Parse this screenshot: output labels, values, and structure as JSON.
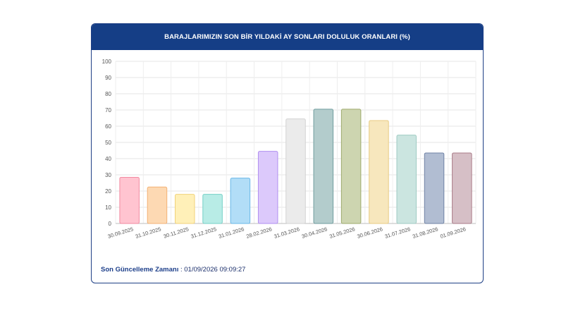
{
  "card": {
    "title": "BARAJLARIMIZIN SON BİR YILDAKİ AY SONLARI DOLULUK ORANLARI (%)"
  },
  "chart_data": {
    "type": "bar",
    "title": "BARAJLARIMIZIN SON BİR YILDAKİ AY SONLARI DOLULUK ORANLARI (%)",
    "xlabel": "",
    "ylabel": "",
    "ylim": [
      0,
      100
    ],
    "yticks": [
      "0",
      "10",
      "20",
      "30",
      "40",
      "50",
      "60",
      "70",
      "80",
      "90",
      "100"
    ],
    "grid": true,
    "categories": [
      "30.09.2025",
      "31.10.2025",
      "30.11.2025",
      "31.12.2025",
      "31.01.2026",
      "28.02.2026",
      "31.03.2026",
      "30.04.2026",
      "31.05.2026",
      "30.06.2026",
      "31.07.2026",
      "31.08.2026",
      "01.09.2026"
    ],
    "values": [
      28.5,
      22.5,
      18.0,
      18.0,
      28.0,
      44.5,
      64.5,
      70.5,
      70.5,
      63.5,
      54.5,
      43.5,
      43.5
    ],
    "colors": [
      {
        "fill": "#ffc4d0",
        "stroke": "#f28aa0"
      },
      {
        "fill": "#fdd9b3",
        "stroke": "#f3b174"
      },
      {
        "fill": "#fff0b8",
        "stroke": "#f0d27a"
      },
      {
        "fill": "#b8ece6",
        "stroke": "#75d0c6"
      },
      {
        "fill": "#b2ddf7",
        "stroke": "#6ab8e8"
      },
      {
        "fill": "#dcc9fb",
        "stroke": "#b08ef0"
      },
      {
        "fill": "#ebebeb",
        "stroke": "#d2d2d2"
      },
      {
        "fill": "#b3cccc",
        "stroke": "#6f9d9e"
      },
      {
        "fill": "#cdd5b0",
        "stroke": "#9eab6c"
      },
      {
        "fill": "#f7e7bd",
        "stroke": "#e8cb82"
      },
      {
        "fill": "#cbe5e0",
        "stroke": "#9fcbc3"
      },
      {
        "fill": "#b1bdd2",
        "stroke": "#6f82a5"
      },
      {
        "fill": "#d6bfc6",
        "stroke": "#a97b88"
      }
    ]
  },
  "footer": {
    "label": "Son Güncelleme Zamanı",
    "separator": " : ",
    "value": "01/09/2026 09:09:27"
  }
}
